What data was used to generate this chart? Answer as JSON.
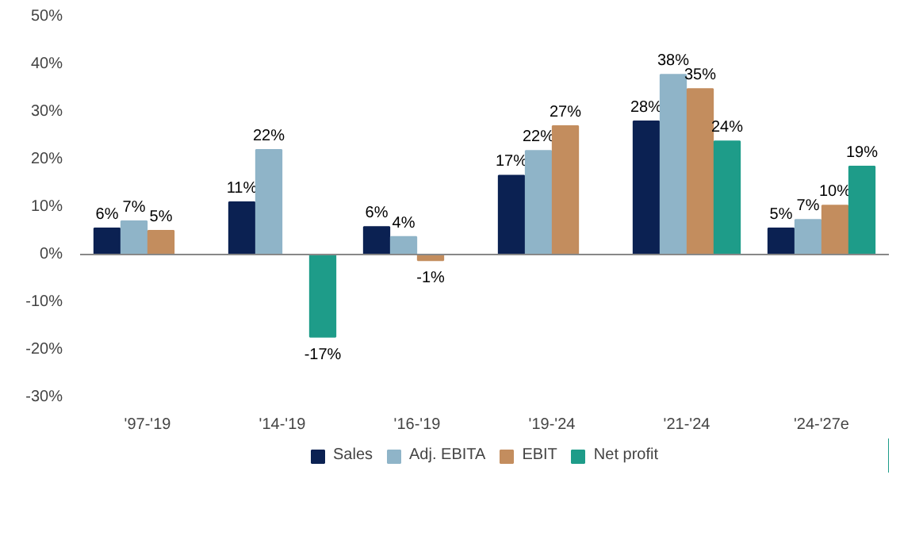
{
  "chart_data": {
    "type": "bar",
    "categories": [
      "'97-'19",
      "'14-'19",
      "'16-'19",
      "'19-'24",
      "'21-'24",
      "'24-'27e"
    ],
    "series": [
      {
        "name": "Sales",
        "color": "#0b2152",
        "values": [
          5.5,
          11,
          5.8,
          16.6,
          28,
          5.5
        ],
        "value_labels": [
          "6%",
          "11%",
          "6%",
          "17%",
          "28%",
          "5%"
        ]
      },
      {
        "name": "Adj. EBITA",
        "color": "#8fb4c8",
        "values": [
          7,
          22,
          3.7,
          21.8,
          37.8,
          7.3
        ],
        "value_labels": [
          "7%",
          "22%",
          "4%",
          "22%",
          "38%",
          "7%"
        ]
      },
      {
        "name": "EBIT",
        "color": "#c38d5e",
        "values": [
          5,
          null,
          -1.2,
          27,
          34.8,
          10.3
        ],
        "value_labels": [
          "5%",
          null,
          "-1%",
          "27%",
          "35%",
          "10%"
        ]
      },
      {
        "name": "Net profit",
        "color": "#1e9c89",
        "values": [
          null,
          -17.3,
          null,
          null,
          23.8,
          18.5
        ],
        "value_labels": [
          null,
          "-17%",
          null,
          null,
          "24%",
          "19%"
        ]
      }
    ],
    "ylim": [
      -30,
      50
    ],
    "yticks": [
      {
        "value": -30,
        "label": "-30%"
      },
      {
        "value": -20,
        "label": "-20%"
      },
      {
        "value": -10,
        "label": "-10%"
      },
      {
        "value": 0,
        "label": "0%"
      },
      {
        "value": 10,
        "label": "10%"
      },
      {
        "value": 20,
        "label": "20%"
      },
      {
        "value": 30,
        "label": "30%"
      },
      {
        "value": 40,
        "label": "40%"
      },
      {
        "value": 50,
        "label": "50%"
      }
    ],
    "legend": "bottom"
  }
}
